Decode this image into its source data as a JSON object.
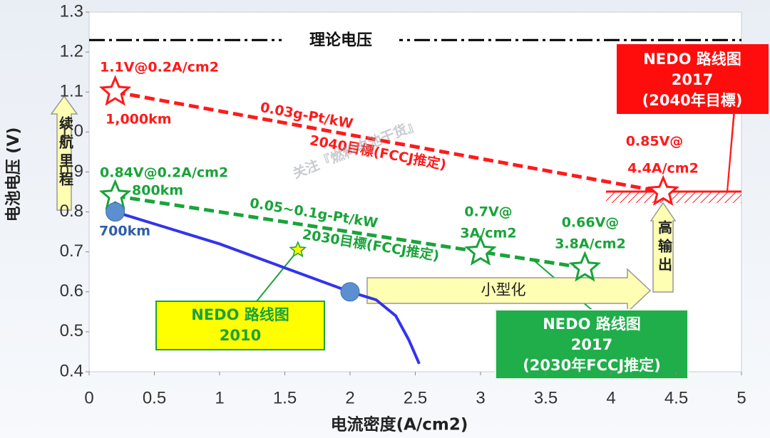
{
  "chart_data": {
    "type": "line",
    "xlabel": "电流密度(A/cm2)",
    "ylabel": "电池电压 (V)",
    "xlim": [
      0,
      5
    ],
    "xticks": [
      0,
      0.5,
      1,
      1.5,
      2,
      2.5,
      3,
      3.5,
      4,
      4.5,
      5
    ],
    "ylim": [
      0.4,
      1.3
    ],
    "yticks": [
      0.4,
      0.5,
      0.6,
      0.7,
      0.8,
      0.9,
      {
        "value": 1,
        "label": "1.0"
      },
      1.1,
      1.2,
      1.3
    ],
    "grid": false,
    "reference_lines": [
      {
        "value": 1.23,
        "label": "理论电压",
        "color": "#000000"
      }
    ],
    "series": [
      {
        "x": [
          0.2,
          4.4
        ],
        "values": [
          1.1,
          0.85
        ],
        "color": "#ff1a1a",
        "style": "dashed",
        "marker": "star"
      },
      {
        "x": [
          0.2,
          3.0,
          3.8
        ],
        "values": [
          0.84,
          0.7,
          0.66
        ],
        "color": "#1aa33a",
        "style": "dashed",
        "marker": "star"
      },
      {
        "x": [
          0.2,
          0.5,
          1.0,
          1.5,
          2.0,
          2.2,
          2.35,
          2.45,
          2.53
        ],
        "values": [
          0.8,
          0.77,
          0.72,
          0.66,
          0.6,
          0.58,
          0.54,
          0.48,
          0.42
        ],
        "color": "#3333ee",
        "style": "solid",
        "marker": "none"
      },
      {
        "x": [
          0.2,
          2.0
        ],
        "values": [
          0.8,
          0.6
        ],
        "color": "#5b8fd0",
        "style": "none",
        "marker": "circle"
      },
      {
        "x": [
          1.6
        ],
        "values": [
          0.705
        ],
        "color": "#f5f500",
        "style": "none",
        "marker": "star"
      }
    ],
    "annotations": [
      "1.1V@0.2A/cm2",
      "1,000km",
      "0.03g-Pt/kW",
      "2040目標(FCCJ推定)",
      "0.85V@",
      "4.4A/cm2",
      "0.84V@0.2A/cm2",
      "800km",
      "0.05~0.1g-Pt/kW",
      "2030目標(FCCJ推定)",
      "0.7V@",
      "3A/cm2",
      "0.66V@",
      "3.8A/cm2",
      "700km",
      "关注『燃料电池干货』"
    ],
    "boxes": [
      {
        "lines": [
          "NEDO 路线图",
          "2017",
          "(2040年目標)"
        ]
      },
      {
        "lines": [
          "NEDO 路线图",
          "2010"
        ]
      },
      {
        "lines": [
          "NEDO 路线图",
          "2017",
          "(2030年FCCJ推定)"
        ]
      }
    ],
    "arrows": [
      "续航里程",
      "高输出",
      "小型化"
    ]
  }
}
